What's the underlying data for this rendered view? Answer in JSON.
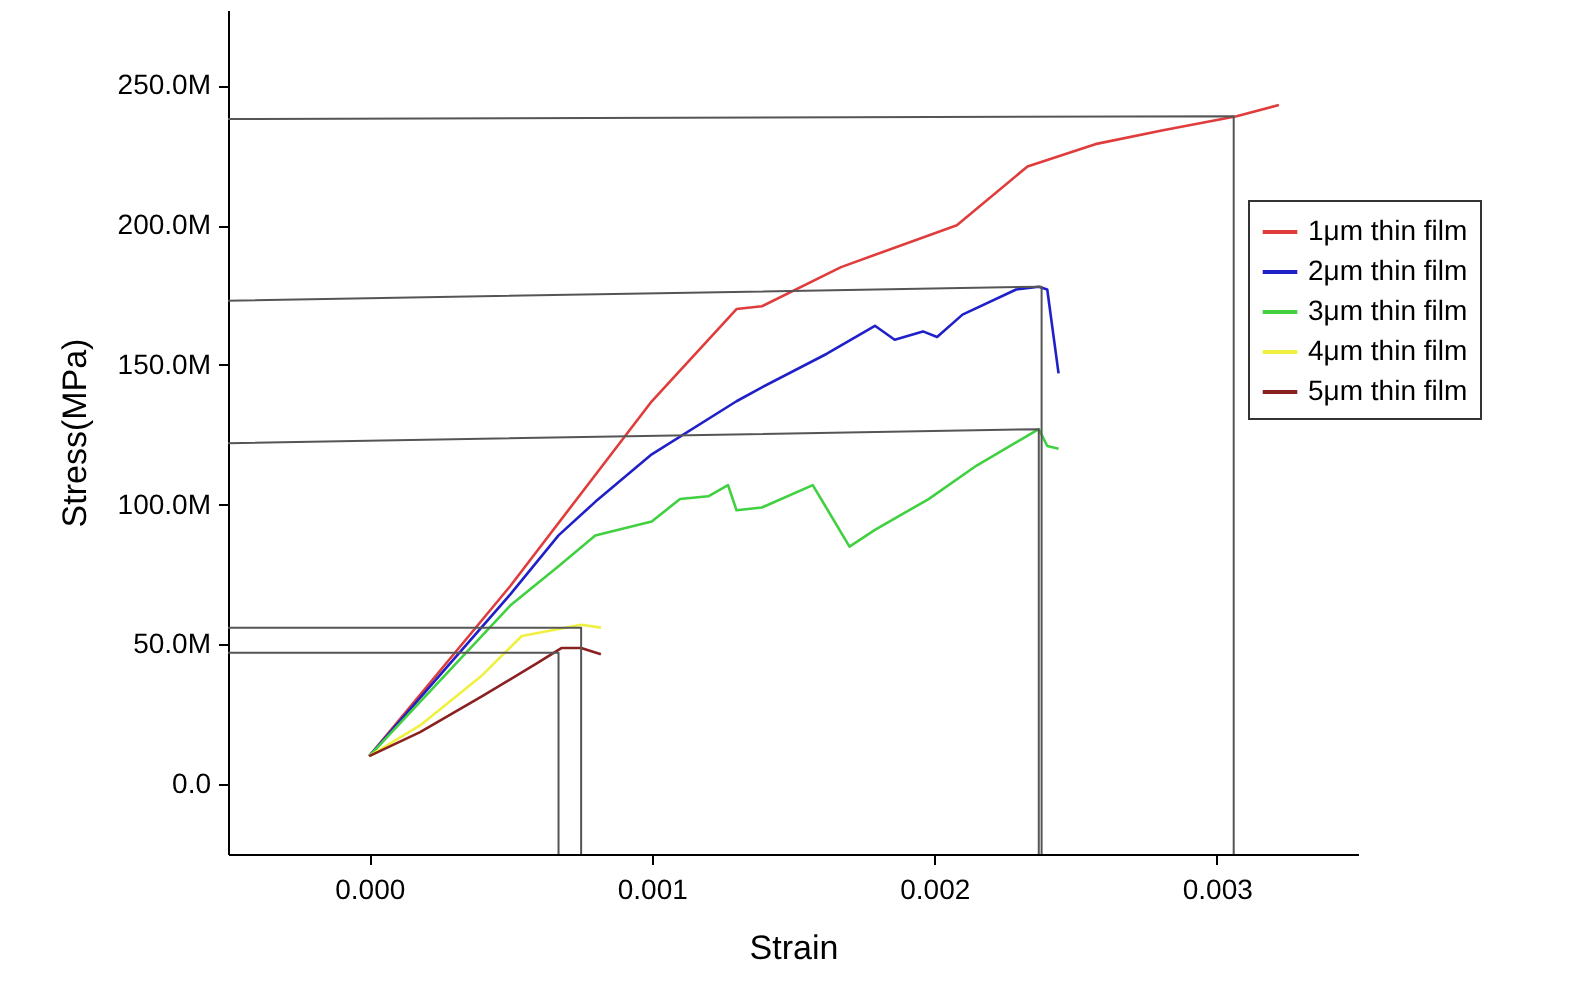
{
  "chart_data": {
    "type": "line",
    "xlabel": "Strain",
    "ylabel": "Stress(MPa)",
    "xlim": [
      -0.0005,
      0.0035
    ],
    "ylim": [
      -25,
      277
    ],
    "xticks": [
      {
        "value": 0,
        "label": "0.000"
      },
      {
        "value": 0.001,
        "label": "0.001"
      },
      {
        "value": 0.002,
        "label": "0.002"
      },
      {
        "value": 0.003,
        "label": "0.003"
      }
    ],
    "yticks": [
      {
        "value": 0,
        "label": "0.0"
      },
      {
        "value": 50,
        "label": "50.0M"
      },
      {
        "value": 100,
        "label": "100.0M"
      },
      {
        "value": 150,
        "label": "150.0M"
      },
      {
        "value": 200,
        "label": "200.0M"
      },
      {
        "value": 250,
        "label": "250.0M"
      }
    ],
    "grid": false,
    "legend": "right",
    "series": [
      {
        "name": "1μm thin film",
        "color": "#e03c3c",
        "x": [
          0,
          0.0005,
          0.00075,
          0.001,
          0.0013,
          0.00139,
          0.00167,
          0.00208,
          0.00233,
          0.00257,
          0.00281,
          0.00307,
          0.00322
        ],
        "values": [
          10,
          71,
          104,
          137,
          170,
          171,
          185,
          200,
          221,
          229,
          234,
          239,
          243
        ]
      },
      {
        "name": "2μm thin film",
        "color": "#2020c8",
        "x": [
          0,
          0.0005,
          0.00067,
          0.0008,
          0.001,
          0.0013,
          0.00139,
          0.00162,
          0.00179,
          0.00186,
          0.00196,
          0.00201,
          0.0021,
          0.00229,
          0.00237,
          0.0024,
          0.00244
        ],
        "values": [
          10,
          68,
          89,
          101,
          118,
          137,
          142,
          154,
          164,
          159,
          162,
          160,
          168,
          177,
          178,
          177,
          147
        ]
      },
      {
        "name": "3μm thin film",
        "color": "#40d040",
        "x": [
          0,
          0.0005,
          0.00067,
          0.0008,
          0.001,
          0.0011,
          0.0012,
          0.00127,
          0.0013,
          0.00139,
          0.00157,
          0.0017,
          0.00179,
          0.00198,
          0.00215,
          0.00237,
          0.0024,
          0.00244
        ],
        "values": [
          10,
          64,
          78,
          89,
          94,
          102,
          103,
          107,
          98,
          99,
          107,
          85,
          91,
          102,
          114,
          127,
          121,
          120
        ]
      },
      {
        "name": "4μm thin film",
        "color": "#f0f040",
        "x": [
          0,
          0.00018,
          0.0004,
          0.00054,
          0.00075,
          0.00082
        ],
        "values": [
          10,
          21,
          39,
          53,
          57,
          56
        ]
      },
      {
        "name": "5μm thin film",
        "color": "#8b2020",
        "x": [
          0,
          0.00018,
          0.0004,
          0.00059,
          0.00068,
          0.00075,
          0.00082
        ],
        "values": [
          10,
          18.6,
          31.5,
          43,
          48.7,
          48.7,
          46.5
        ]
      },
      {
        "color": "#555555",
        "x": [
          -0.0005,
          0.00306,
          0.00306
        ],
        "values": [
          238,
          239,
          -25
        ]
      },
      {
        "color": "#555555",
        "x": [
          -0.0005,
          0.00238,
          0.00238
        ],
        "values": [
          173,
          178,
          -25
        ]
      },
      {
        "color": "#555555",
        "x": [
          -0.0005,
          0.00237,
          0.00237
        ],
        "values": [
          122,
          127,
          -25
        ]
      },
      {
        "color": "#555555",
        "x": [
          -0.0005,
          0.00075,
          0.00075
        ],
        "values": [
          56,
          56,
          -25
        ]
      },
      {
        "color": "#555555",
        "x": [
          -0.0005,
          0.00067,
          0.00067
        ],
        "values": [
          47,
          47,
          -25
        ]
      }
    ]
  }
}
